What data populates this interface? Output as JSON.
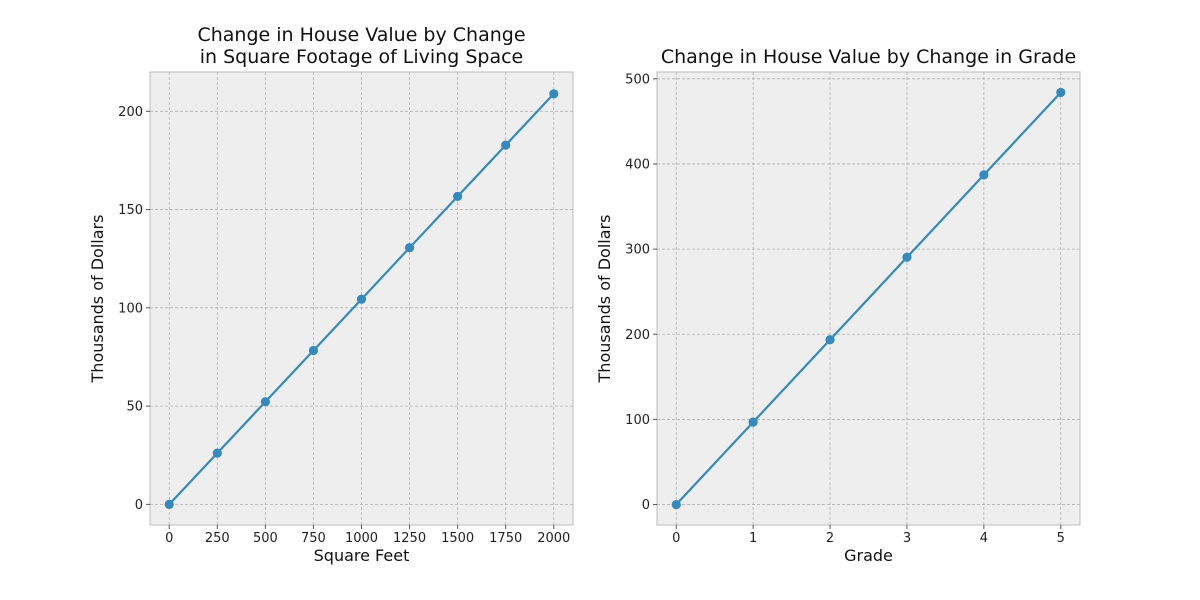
{
  "chart_data": [
    {
      "type": "line",
      "title": "Change in House Value by Change\nin Square Footage of Living Space",
      "xlabel": "Square Feet",
      "ylabel": "Thousands of Dollars",
      "xlim": [
        -100,
        2100
      ],
      "ylim": [
        -10.5,
        220
      ],
      "xticks": [
        0,
        250,
        500,
        750,
        1000,
        1250,
        1500,
        1750,
        2000
      ],
      "yticks": [
        0,
        50,
        100,
        150,
        200
      ],
      "grid": true,
      "color": "#348abd",
      "x": [
        0,
        250,
        500,
        750,
        1000,
        1250,
        1500,
        1750,
        2000
      ],
      "y": [
        0,
        26.1,
        52.2,
        78.3,
        104.4,
        130.6,
        156.7,
        182.8,
        208.9
      ]
    },
    {
      "type": "line",
      "title": "Change in House Value by Change in Grade",
      "xlabel": "Grade",
      "ylabel": "Thousands of Dollars",
      "xlim": [
        -0.25,
        5.25
      ],
      "ylim": [
        -24,
        508
      ],
      "xticks": [
        0,
        1,
        2,
        3,
        4,
        5
      ],
      "yticks": [
        0,
        100,
        200,
        300,
        400,
        500
      ],
      "grid": true,
      "color": "#348abd",
      "x": [
        0,
        1,
        2,
        3,
        4,
        5
      ],
      "y": [
        0,
        96.8,
        193.6,
        290.4,
        387.2,
        484.0
      ]
    }
  ]
}
